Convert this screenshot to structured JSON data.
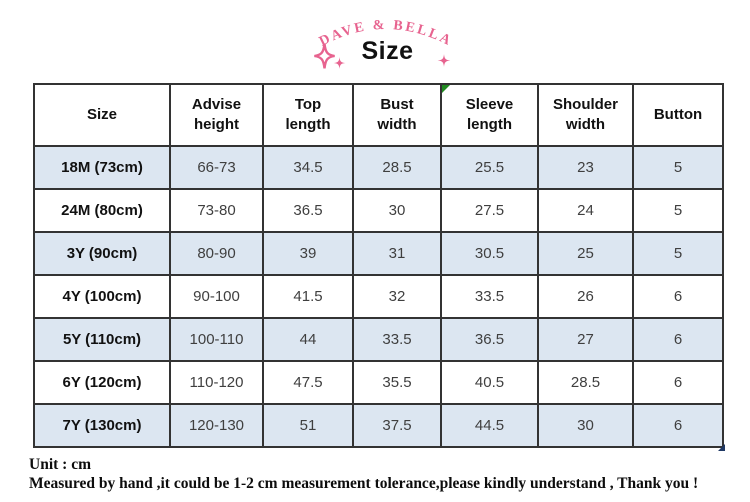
{
  "brand": {
    "name": "DAVE & BELLA"
  },
  "title": "Size",
  "table": {
    "columns": [
      "Size",
      "Advise height",
      "Top length",
      "Bust width",
      "Sleeve length",
      "Shoulder width",
      "Button"
    ],
    "rows": [
      {
        "size": "18M (73cm)",
        "values": [
          "66-73",
          "34.5",
          "28.5",
          "25.5",
          "23",
          "5"
        ]
      },
      {
        "size": "24M (80cm)",
        "values": [
          "73-80",
          "36.5",
          "30",
          "27.5",
          "24",
          "5"
        ]
      },
      {
        "size": "3Y (90cm)",
        "values": [
          "80-90",
          "39",
          "31",
          "30.5",
          "25",
          "5"
        ]
      },
      {
        "size": "4Y (100cm)",
        "values": [
          "90-100",
          "41.5",
          "32",
          "33.5",
          "26",
          "6"
        ]
      },
      {
        "size": "5Y (110cm)",
        "values": [
          "100-110",
          "44",
          "33.5",
          "36.5",
          "27",
          "6"
        ]
      },
      {
        "size": "6Y (120cm)",
        "values": [
          "110-120",
          "47.5",
          "35.5",
          "40.5",
          "28.5",
          "6"
        ]
      },
      {
        "size": "7Y (130cm)",
        "values": [
          "120-130",
          "51",
          "37.5",
          "44.5",
          "30",
          "6"
        ]
      }
    ]
  },
  "footer": {
    "unit_line": "Unit : cm",
    "note_line": "Measured by hand ,it could be 1-2 cm measurement tolerance,please kindly understand , Thank you !"
  },
  "colors": {
    "brand_pink": "#e7638f",
    "row_alt": "#dce6f1",
    "border": "#333333",
    "text": "#3f3f3f",
    "green_marker": "#228b22",
    "handle_navy": "#1f3864"
  }
}
